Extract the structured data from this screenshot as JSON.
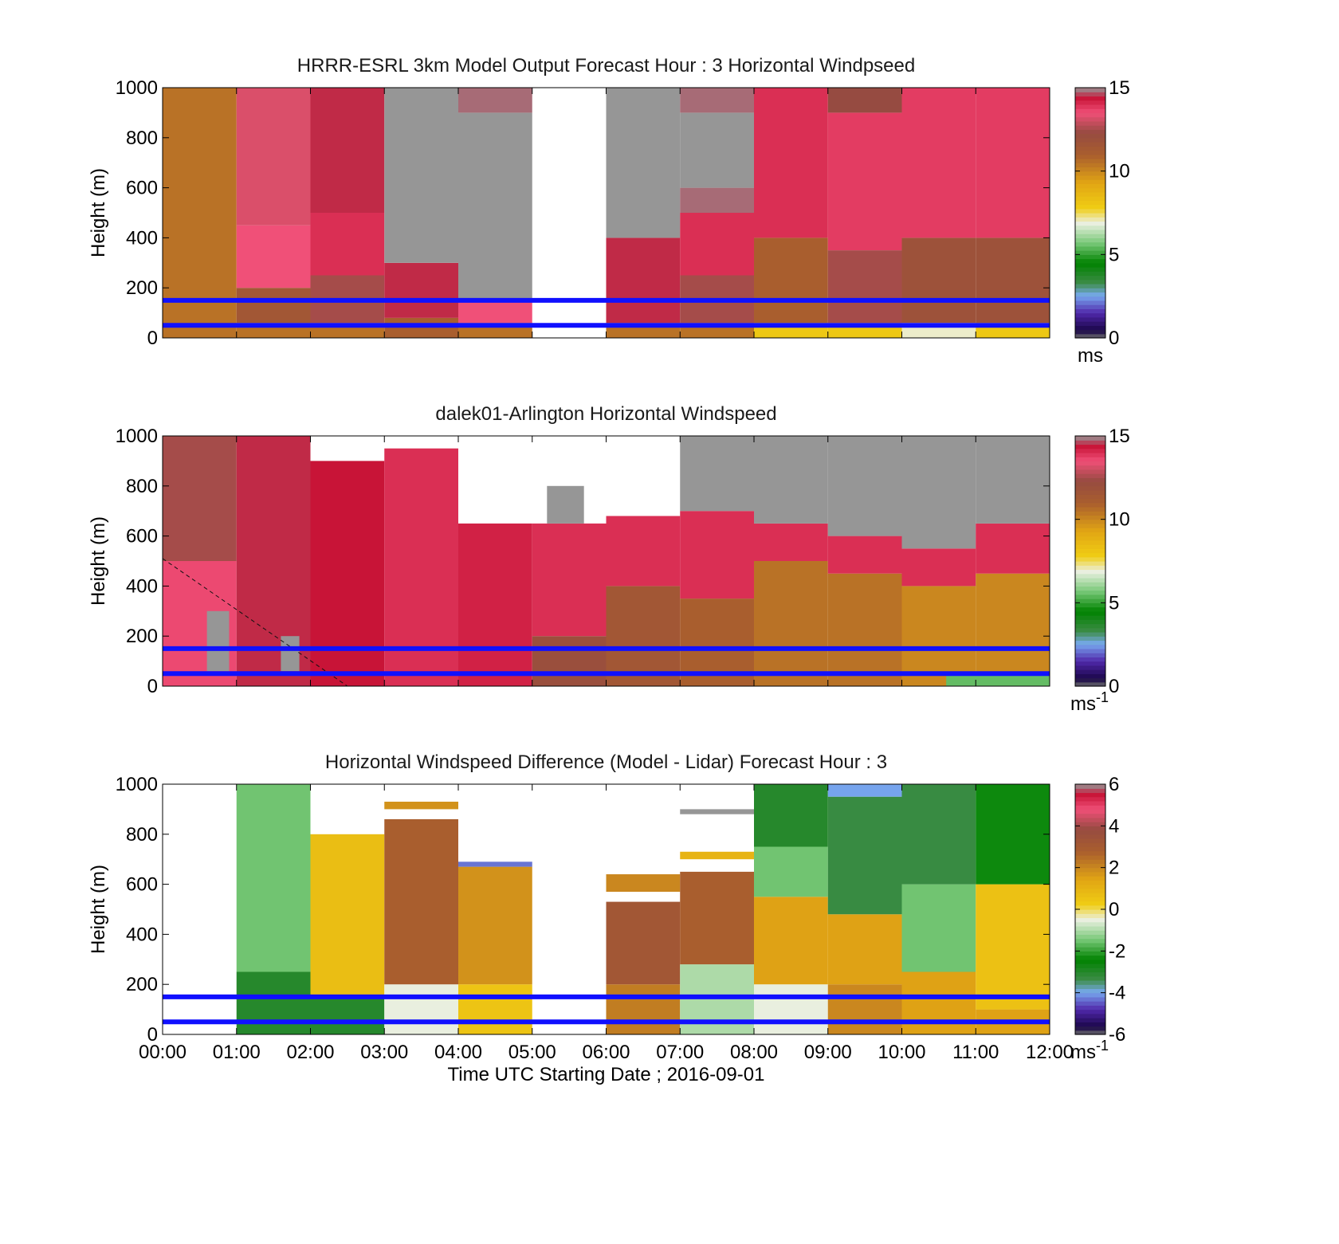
{
  "figure": {
    "xaxis": {
      "label": "Time UTC  Starting Date ; 2016-09-01",
      "ticks": [
        "00:00",
        "01:00",
        "02:00",
        "03:00",
        "04:00",
        "05:00",
        "06:00",
        "07:00",
        "08:00",
        "09:00",
        "10:00",
        "11:00",
        "12:00"
      ]
    }
  },
  "chart_data": [
    {
      "type": "heatmap",
      "title": "HRRR-ESRL 3km Model Output   Forecast Hour : 3 Horizontal Windpseed",
      "ylabel": "Height (m)",
      "ylim": [
        0,
        1000
      ],
      "yticks": [
        "0",
        "200",
        "400",
        "600",
        "800",
        "1000"
      ],
      "xlim": [
        0,
        12
      ],
      "colorbar": {
        "ticks": [
          "0",
          "5",
          "10",
          "15"
        ],
        "min": 0,
        "max": 15,
        "unit": "ms",
        "unit_sup": ""
      },
      "reference_lines_m": [
        50,
        150
      ],
      "reference_line_color": "#1010ff",
      "cells": [
        {
          "x0": 0,
          "x1": 1,
          "z0": 0,
          "z1": 1000,
          "v": 10.5
        },
        {
          "x0": 1,
          "x1": 2,
          "z0": 0,
          "z1": 60,
          "v": 10.5
        },
        {
          "x0": 1,
          "x1": 2,
          "z0": 60,
          "z1": 200,
          "v": 11.5
        },
        {
          "x0": 1,
          "x1": 2,
          "z0": 200,
          "z1": 450,
          "v": 13.5
        },
        {
          "x0": 1,
          "x1": 2,
          "z0": 450,
          "z1": 1000,
          "v": 13.2
        },
        {
          "x0": 2,
          "x1": 3,
          "z0": 0,
          "z1": 60,
          "v": 10.5
        },
        {
          "x0": 2,
          "x1": 3,
          "z0": 60,
          "z1": 250,
          "v": 12.5
        },
        {
          "x0": 2,
          "x1": 3,
          "z0": 250,
          "z1": 500,
          "v": 14.0
        },
        {
          "x0": 2,
          "x1": 3,
          "z0": 500,
          "z1": 1000,
          "v": 14.5
        },
        {
          "x0": 3,
          "x1": 4,
          "z0": 0,
          "z1": 80,
          "v": 11.0
        },
        {
          "x0": 3,
          "x1": 4,
          "z0": 80,
          "z1": 300,
          "v": 14.5
        },
        {
          "x0": 3,
          "x1": 4,
          "z0": 300,
          "z1": 1000,
          "v": 15.5
        },
        {
          "x0": 4,
          "x1": 5,
          "z0": 0,
          "z1": 60,
          "v": 10.5
        },
        {
          "x0": 4,
          "x1": 5,
          "z0": 60,
          "z1": 150,
          "v": 13.5
        },
        {
          "x0": 4,
          "x1": 5,
          "z0": 150,
          "z1": 900,
          "v": 15.5
        },
        {
          "x0": 4,
          "x1": 5,
          "z0": 900,
          "z1": 1000,
          "v": 14.8
        },
        {
          "x0": 6,
          "x1": 7,
          "z0": 0,
          "z1": 60,
          "v": 10.5
        },
        {
          "x0": 6,
          "x1": 7,
          "z0": 60,
          "z1": 400,
          "v": 14.5
        },
        {
          "x0": 6,
          "x1": 7,
          "z0": 400,
          "z1": 1000,
          "v": 15.5
        },
        {
          "x0": 7,
          "x1": 8,
          "z0": 0,
          "z1": 60,
          "v": 10.5
        },
        {
          "x0": 7,
          "x1": 8,
          "z0": 60,
          "z1": 250,
          "v": 12.5
        },
        {
          "x0": 7,
          "x1": 8,
          "z0": 250,
          "z1": 500,
          "v": 14.0
        },
        {
          "x0": 7,
          "x1": 8,
          "z0": 500,
          "z1": 600,
          "v": 14.8
        },
        {
          "x0": 7,
          "x1": 8,
          "z0": 600,
          "z1": 900,
          "v": 15.5
        },
        {
          "x0": 7,
          "x1": 8,
          "z0": 900,
          "z1": 1000,
          "v": 14.8
        },
        {
          "x0": 8,
          "x1": 9,
          "z0": 0,
          "z1": 60,
          "v": 8.0
        },
        {
          "x0": 8,
          "x1": 9,
          "z0": 60,
          "z1": 400,
          "v": 11.0
        },
        {
          "x0": 8,
          "x1": 9,
          "z0": 400,
          "z1": 1000,
          "v": 14.0
        },
        {
          "x0": 9,
          "x1": 10,
          "z0": 0,
          "z1": 60,
          "v": 8.0
        },
        {
          "x0": 9,
          "x1": 10,
          "z0": 60,
          "z1": 350,
          "v": 12.5
        },
        {
          "x0": 9,
          "x1": 10,
          "z0": 350,
          "z1": 900,
          "v": 13.8
        },
        {
          "x0": 9,
          "x1": 10,
          "z0": 900,
          "z1": 1000,
          "v": 12.3
        },
        {
          "x0": 10,
          "x1": 11,
          "z0": 0,
          "z1": 60,
          "v": 7.0
        },
        {
          "x0": 10,
          "x1": 11,
          "z0": 60,
          "z1": 400,
          "v": 11.8
        },
        {
          "x0": 10,
          "x1": 11,
          "z0": 400,
          "z1": 1000,
          "v": 13.8
        },
        {
          "x0": 11,
          "x1": 12,
          "z0": 0,
          "z1": 60,
          "v": 8.0
        },
        {
          "x0": 11,
          "x1": 12,
          "z0": 60,
          "z1": 400,
          "v": 11.8
        },
        {
          "x0": 11,
          "x1": 12,
          "z0": 400,
          "z1": 1000,
          "v": 13.8
        }
      ]
    },
    {
      "type": "heatmap",
      "title": "dalek01-Arlington  Horizontal Windspeed",
      "ylabel": "Height (m)",
      "ylim": [
        0,
        1000
      ],
      "yticks": [
        "0",
        "200",
        "400",
        "600",
        "800",
        "1000"
      ],
      "xlim": [
        0,
        12
      ],
      "colorbar": {
        "ticks": [
          "0",
          "5",
          "10",
          "15"
        ],
        "min": 0,
        "max": 15,
        "unit": "ms",
        "unit_sup": "-1"
      },
      "reference_lines_m": [
        50,
        150
      ],
      "reference_line_color": "#1010ff",
      "cells": [
        {
          "x0": 0,
          "x1": 1,
          "z0": 0,
          "z1": 500,
          "v": 13.6
        },
        {
          "x0": 0,
          "x1": 1,
          "z0": 500,
          "z1": 1000,
          "v": 12.5
        },
        {
          "x0": 0.6,
          "x1": 0.9,
          "z0": 60,
          "z1": 300,
          "v": 15.5
        },
        {
          "x0": 1,
          "x1": 2,
          "z0": 0,
          "z1": 1000,
          "v": 14.5
        },
        {
          "x0": 1.6,
          "x1": 1.85,
          "z0": 60,
          "z1": 200,
          "v": 15.5
        },
        {
          "x0": 2,
          "x1": 3,
          "z0": 0,
          "z1": 900,
          "v": 14.4
        },
        {
          "x0": 3,
          "x1": 4,
          "z0": 0,
          "z1": 950,
          "v": 14.0
        },
        {
          "x0": 4,
          "x1": 5,
          "z0": 0,
          "z1": 650,
          "v": 14.2
        },
        {
          "x0": 5,
          "x1": 6,
          "z0": 0,
          "z1": 200,
          "v": 12.0
        },
        {
          "x0": 5,
          "x1": 6,
          "z0": 200,
          "z1": 650,
          "v": 14.0
        },
        {
          "x0": 5.2,
          "x1": 5.7,
          "z0": 650,
          "z1": 800,
          "v": 15.5
        },
        {
          "x0": 6,
          "x1": 7,
          "z0": 0,
          "z1": 400,
          "v": 11.5
        },
        {
          "x0": 6,
          "x1": 7,
          "z0": 400,
          "z1": 680,
          "v": 14.0
        },
        {
          "x0": 7,
          "x1": 8,
          "z0": 0,
          "z1": 350,
          "v": 11.0
        },
        {
          "x0": 7,
          "x1": 8,
          "z0": 350,
          "z1": 700,
          "v": 14.0
        },
        {
          "x0": 7,
          "x1": 8,
          "z0": 700,
          "z1": 1000,
          "v": 15.5
        },
        {
          "x0": 8,
          "x1": 9,
          "z0": 0,
          "z1": 500,
          "v": 10.5
        },
        {
          "x0": 8,
          "x1": 9,
          "z0": 500,
          "z1": 650,
          "v": 14.0
        },
        {
          "x0": 8,
          "x1": 9,
          "z0": 650,
          "z1": 1000,
          "v": 15.5
        },
        {
          "x0": 9,
          "x1": 10,
          "z0": 0,
          "z1": 450,
          "v": 10.5
        },
        {
          "x0": 9,
          "x1": 10,
          "z0": 450,
          "z1": 600,
          "v": 14.0
        },
        {
          "x0": 9,
          "x1": 10,
          "z0": 600,
          "z1": 1000,
          "v": 15.5
        },
        {
          "x0": 10,
          "x1": 11,
          "z0": 0,
          "z1": 400,
          "v": 10.0
        },
        {
          "x0": 10,
          "x1": 11,
          "z0": 400,
          "z1": 550,
          "v": 14.0
        },
        {
          "x0": 10,
          "x1": 11,
          "z0": 550,
          "z1": 1000,
          "v": 15.5
        },
        {
          "x0": 11,
          "x1": 12,
          "z0": 0,
          "z1": 450,
          "v": 10.0
        },
        {
          "x0": 11,
          "x1": 12,
          "z0": 450,
          "z1": 650,
          "v": 14.0
        },
        {
          "x0": 11,
          "x1": 12,
          "z0": 650,
          "z1": 1000,
          "v": 15.5
        },
        {
          "x0": 10.6,
          "x1": 12,
          "z0": 0,
          "z1": 50,
          "v": 5.5
        }
      ],
      "annotation_line": {
        "style": "dashed",
        "from": [
          0,
          510
        ],
        "to": [
          2.5,
          0
        ]
      }
    },
    {
      "type": "heatmap",
      "title": "Horizontal Windspeed Difference (Model - Lidar) Forecast Hour : 3",
      "ylabel": "Height (m)",
      "ylim": [
        0,
        1000
      ],
      "yticks": [
        "0",
        "200",
        "400",
        "600",
        "800",
        "1000"
      ],
      "xlim": [
        0,
        12
      ],
      "colorbar": {
        "ticks": [
          "-6",
          "-4",
          "-2",
          "0",
          "2",
          "4",
          "6"
        ],
        "min": -6,
        "max": 6,
        "unit": "ms",
        "unit_sup": "-1"
      },
      "reference_lines_m": [
        50,
        150
      ],
      "reference_line_color": "#1010ff",
      "cells": [
        {
          "x0": 1,
          "x1": 2,
          "z0": 0,
          "z1": 250,
          "v": -3.0
        },
        {
          "x0": 1,
          "x1": 2,
          "z0": 250,
          "z1": 1000,
          "v": -1.5
        },
        {
          "x0": 2,
          "x1": 3,
          "z0": 0,
          "z1": 150,
          "v": -3.0
        },
        {
          "x0": 2,
          "x1": 3,
          "z0": 150,
          "z1": 800,
          "v": 0.7
        },
        {
          "x0": 3,
          "x1": 4,
          "z0": 0,
          "z1": 200,
          "v": -0.5
        },
        {
          "x0": 3,
          "x1": 4,
          "z0": 200,
          "z1": 860,
          "v": 2.8
        },
        {
          "x0": 3,
          "x1": 4,
          "z0": 900,
          "z1": 930,
          "v": 1.8
        },
        {
          "x0": 4,
          "x1": 5,
          "z0": 0,
          "z1": 200,
          "v": 0.5
        },
        {
          "x0": 4,
          "x1": 5,
          "z0": 200,
          "z1": 670,
          "v": 1.8
        },
        {
          "x0": 4,
          "x1": 5,
          "z0": 670,
          "z1": 690,
          "v": -4.3
        },
        {
          "x0": 6,
          "x1": 7,
          "z0": 0,
          "z1": 200,
          "v": 2.2
        },
        {
          "x0": 6,
          "x1": 7,
          "z0": 200,
          "z1": 530,
          "v": 3.2
        },
        {
          "x0": 6,
          "x1": 7,
          "z0": 570,
          "z1": 640,
          "v": 2.0
        },
        {
          "x0": 7,
          "x1": 8,
          "z0": 0,
          "z1": 280,
          "v": -1.0
        },
        {
          "x0": 7,
          "x1": 8,
          "z0": 280,
          "z1": 650,
          "v": 2.8
        },
        {
          "x0": 7,
          "x1": 8,
          "z0": 700,
          "z1": 730,
          "v": 1.0
        },
        {
          "x0": 7,
          "x1": 8,
          "z0": 880,
          "z1": 900,
          "v": 6.0
        },
        {
          "x0": 8,
          "x1": 9,
          "z0": 0,
          "z1": 200,
          "v": -0.5
        },
        {
          "x0": 8,
          "x1": 9,
          "z0": 200,
          "z1": 550,
          "v": 1.5
        },
        {
          "x0": 8,
          "x1": 9,
          "z0": 550,
          "z1": 750,
          "v": -1.5
        },
        {
          "x0": 8,
          "x1": 9,
          "z0": 750,
          "z1": 1000,
          "v": -3.0
        },
        {
          "x0": 9,
          "x1": 10,
          "z0": 0,
          "z1": 200,
          "v": 2.0
        },
        {
          "x0": 9,
          "x1": 10,
          "z0": 200,
          "z1": 480,
          "v": 1.5
        },
        {
          "x0": 9,
          "x1": 10,
          "z0": 480,
          "z1": 950,
          "v": -3.3
        },
        {
          "x0": 9,
          "x1": 10,
          "z0": 950,
          "z1": 1000,
          "v": -4.0
        },
        {
          "x0": 10,
          "x1": 11,
          "z0": 0,
          "z1": 250,
          "v": 1.5
        },
        {
          "x0": 10,
          "x1": 11,
          "z0": 250,
          "z1": 600,
          "v": -1.5
        },
        {
          "x0": 10,
          "x1": 11,
          "z0": 600,
          "z1": 1000,
          "v": -3.3
        },
        {
          "x0": 11,
          "x1": 12,
          "z0": 0,
          "z1": 100,
          "v": 1.5
        },
        {
          "x0": 11,
          "x1": 12,
          "z0": 100,
          "z1": 600,
          "v": 0.6
        },
        {
          "x0": 11,
          "x1": 12,
          "z0": 600,
          "z1": 1000,
          "v": -2.3
        }
      ]
    }
  ]
}
